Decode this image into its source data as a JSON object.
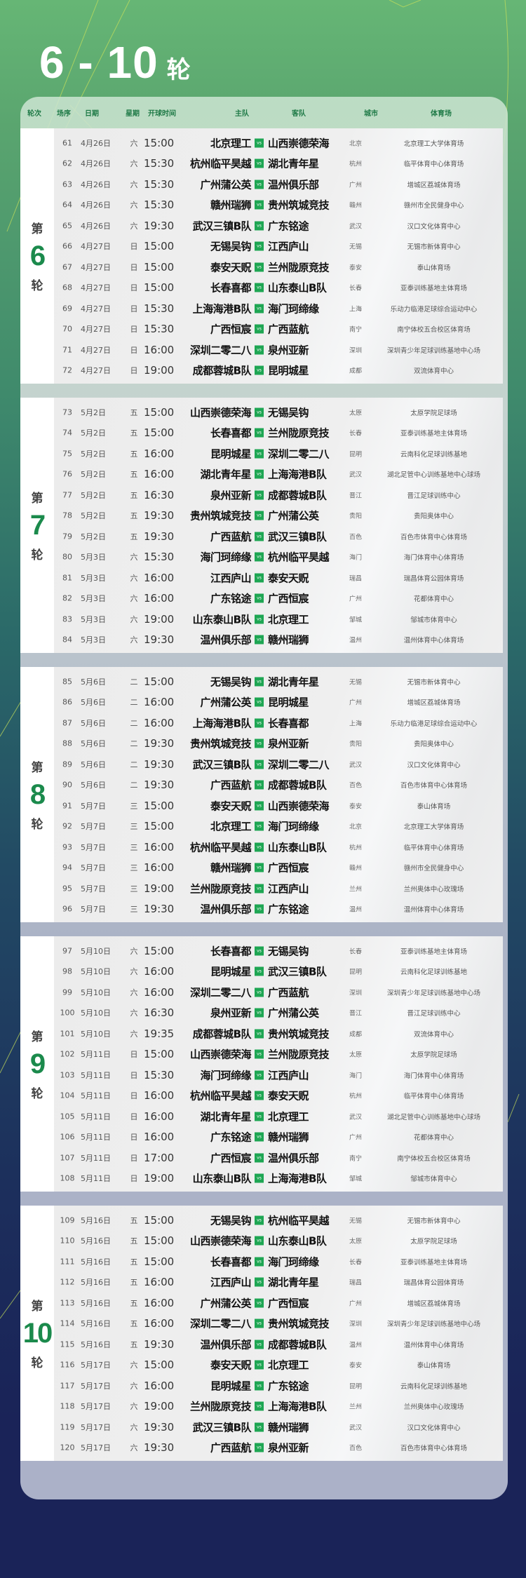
{
  "title": {
    "range": "6 - 10",
    "suffix": "轮"
  },
  "headers": [
    "轮次",
    "场序",
    "日期",
    "星期",
    "开球时间",
    "主队",
    "客队",
    "城市",
    "体育场"
  ],
  "vs_label": "vs",
  "colors": {
    "accent_green": "#1b8a4c",
    "vs_badge": "#1ea653",
    "bg_top": "#66b675",
    "bg_bottom": "#1a2358"
  },
  "rounds": [
    {
      "prefix": "第",
      "number": "6",
      "suffix": "轮",
      "matches": [
        [
          "61",
          "4月26日",
          "六",
          "15:00",
          "北京理工",
          "山西崇德荣海",
          "北京",
          "北京理工大学体育场"
        ],
        [
          "62",
          "4月26日",
          "六",
          "15:30",
          "杭州临平昊越",
          "湖北青年星",
          "杭州",
          "临平体育中心体育场"
        ],
        [
          "63",
          "4月26日",
          "六",
          "15:30",
          "广州蒲公英",
          "温州俱乐部",
          "广州",
          "增城区荔城体育场"
        ],
        [
          "64",
          "4月26日",
          "六",
          "15:30",
          "赣州瑞狮",
          "贵州筑城竞技",
          "赣州",
          "赣州市全民健身中心"
        ],
        [
          "65",
          "4月26日",
          "六",
          "19:30",
          "武汉三镇B队",
          "广东铭途",
          "武汉",
          "汉口文化体育中心"
        ],
        [
          "66",
          "4月27日",
          "日",
          "15:00",
          "无锡吴钩",
          "江西庐山",
          "无锡",
          "无锡市新体育中心"
        ],
        [
          "67",
          "4月27日",
          "日",
          "15:00",
          "泰安天贶",
          "兰州陇原竞技",
          "泰安",
          "泰山体育场"
        ],
        [
          "68",
          "4月27日",
          "日",
          "15:00",
          "长春喜都",
          "山东泰山B队",
          "长春",
          "亚泰训练基地主体育场"
        ],
        [
          "69",
          "4月27日",
          "日",
          "15:30",
          "上海海港B队",
          "海门珂缔缘",
          "上海",
          "乐动力临港足球综合运动中心"
        ],
        [
          "70",
          "4月27日",
          "日",
          "15:30",
          "广西恒宸",
          "广西蓝航",
          "南宁",
          "南宁体校五合校区体育场"
        ],
        [
          "71",
          "4月27日",
          "日",
          "16:00",
          "深圳二零二八",
          "泉州亚新",
          "深圳",
          "深圳青少年足球训练基地中心场"
        ],
        [
          "72",
          "4月27日",
          "日",
          "19:00",
          "成都蓉城B队",
          "昆明城星",
          "成都",
          "双流体育中心"
        ]
      ]
    },
    {
      "prefix": "第",
      "number": "7",
      "suffix": "轮",
      "matches": [
        [
          "73",
          "5月2日",
          "五",
          "15:00",
          "山西崇德荣海",
          "无锡吴钩",
          "太原",
          "太原学院足球场"
        ],
        [
          "74",
          "5月2日",
          "五",
          "15:00",
          "长春喜都",
          "兰州陇原竞技",
          "长春",
          "亚泰训练基地主体育场"
        ],
        [
          "75",
          "5月2日",
          "五",
          "16:00",
          "昆明城星",
          "深圳二零二八",
          "昆明",
          "云南科化足球训练基地"
        ],
        [
          "76",
          "5月2日",
          "五",
          "16:00",
          "湖北青年星",
          "上海海港B队",
          "武汉",
          "湖北足管中心训练基地中心球场"
        ],
        [
          "77",
          "5月2日",
          "五",
          "16:30",
          "泉州亚新",
          "成都蓉城B队",
          "晋江",
          "晋江足球训练中心"
        ],
        [
          "78",
          "5月2日",
          "五",
          "19:30",
          "贵州筑城竞技",
          "广州蒲公英",
          "贵阳",
          "贵阳奥体中心"
        ],
        [
          "79",
          "5月2日",
          "五",
          "19:30",
          "广西蓝航",
          "武汉三镇B队",
          "百色",
          "百色市体育中心体育场"
        ],
        [
          "80",
          "5月3日",
          "六",
          "15:30",
          "海门珂缔缘",
          "杭州临平昊越",
          "海门",
          "海门体育中心体育场"
        ],
        [
          "81",
          "5月3日",
          "六",
          "16:00",
          "江西庐山",
          "泰安天贶",
          "瑞昌",
          "瑞昌体育公园体育场"
        ],
        [
          "82",
          "5月3日",
          "六",
          "16:00",
          "广东铭途",
          "广西恒宸",
          "广州",
          "花都体育中心"
        ],
        [
          "83",
          "5月3日",
          "六",
          "19:00",
          "山东泰山B队",
          "北京理工",
          "邹城",
          "邹城市体育中心"
        ],
        [
          "84",
          "5月3日",
          "六",
          "19:30",
          "温州俱乐部",
          "赣州瑞狮",
          "温州",
          "温州体育中心体育场"
        ]
      ]
    },
    {
      "prefix": "第",
      "number": "8",
      "suffix": "轮",
      "matches": [
        [
          "85",
          "5月6日",
          "二",
          "15:00",
          "无锡吴钩",
          "湖北青年星",
          "无锡",
          "无锡市新体育中心"
        ],
        [
          "86",
          "5月6日",
          "二",
          "16:00",
          "广州蒲公英",
          "昆明城星",
          "广州",
          "增城区荔城体育场"
        ],
        [
          "87",
          "5月6日",
          "二",
          "16:00",
          "上海海港B队",
          "长春喜都",
          "上海",
          "乐动力临港足球综合运动中心"
        ],
        [
          "88",
          "5月6日",
          "二",
          "19:30",
          "贵州筑城竞技",
          "泉州亚新",
          "贵阳",
          "贵阳奥体中心"
        ],
        [
          "89",
          "5月6日",
          "二",
          "19:30",
          "武汉三镇B队",
          "深圳二零二八",
          "武汉",
          "汉口文化体育中心"
        ],
        [
          "90",
          "5月6日",
          "二",
          "19:30",
          "广西蓝航",
          "成都蓉城B队",
          "百色",
          "百色市体育中心体育场"
        ],
        [
          "91",
          "5月7日",
          "三",
          "15:00",
          "泰安天贶",
          "山西崇德荣海",
          "泰安",
          "泰山体育场"
        ],
        [
          "92",
          "5月7日",
          "三",
          "15:00",
          "北京理工",
          "海门珂缔缘",
          "北京",
          "北京理工大学体育场"
        ],
        [
          "93",
          "5月7日",
          "三",
          "16:00",
          "杭州临平昊越",
          "山东泰山B队",
          "杭州",
          "临平体育中心体育场"
        ],
        [
          "94",
          "5月7日",
          "三",
          "16:00",
          "赣州瑞狮",
          "广西恒宸",
          "赣州",
          "赣州市全民健身中心"
        ],
        [
          "95",
          "5月7日",
          "三",
          "19:00",
          "兰州陇原竞技",
          "江西庐山",
          "兰州",
          "兰州奥体中心玫瑰场"
        ],
        [
          "96",
          "5月7日",
          "三",
          "19:30",
          "温州俱乐部",
          "广东铭途",
          "温州",
          "温州体育中心体育场"
        ]
      ]
    },
    {
      "prefix": "第",
      "number": "9",
      "suffix": "轮",
      "matches": [
        [
          "97",
          "5月10日",
          "六",
          "15:00",
          "长春喜都",
          "无锡吴钩",
          "长春",
          "亚泰训练基地主体育场"
        ],
        [
          "98",
          "5月10日",
          "六",
          "16:00",
          "昆明城星",
          "武汉三镇B队",
          "昆明",
          "云南科化足球训练基地"
        ],
        [
          "99",
          "5月10日",
          "六",
          "16:00",
          "深圳二零二八",
          "广西蓝航",
          "深圳",
          "深圳青少年足球训练基地中心场"
        ],
        [
          "100",
          "5月10日",
          "六",
          "16:30",
          "泉州亚新",
          "广州蒲公英",
          "晋江",
          "晋江足球训练中心"
        ],
        [
          "101",
          "5月10日",
          "六",
          "19:35",
          "成都蓉城B队",
          "贵州筑城竞技",
          "成都",
          "双流体育中心"
        ],
        [
          "102",
          "5月11日",
          "日",
          "15:00",
          "山西崇德荣海",
          "兰州陇原竞技",
          "太原",
          "太原学院足球场"
        ],
        [
          "103",
          "5月11日",
          "日",
          "15:30",
          "海门珂缔缘",
          "江西庐山",
          "海门",
          "海门体育中心体育场"
        ],
        [
          "104",
          "5月11日",
          "日",
          "16:00",
          "杭州临平昊越",
          "泰安天贶",
          "杭州",
          "临平体育中心体育场"
        ],
        [
          "105",
          "5月11日",
          "日",
          "16:00",
          "湖北青年星",
          "北京理工",
          "武汉",
          "湖北足管中心训练基地中心球场"
        ],
        [
          "106",
          "5月11日",
          "日",
          "16:00",
          "广东铭途",
          "赣州瑞狮",
          "广州",
          "花都体育中心"
        ],
        [
          "107",
          "5月11日",
          "日",
          "17:00",
          "广西恒宸",
          "温州俱乐部",
          "南宁",
          "南宁体校五合校区体育场"
        ],
        [
          "108",
          "5月11日",
          "日",
          "19:00",
          "山东泰山B队",
          "上海海港B队",
          "邹城",
          "邹城市体育中心"
        ]
      ]
    },
    {
      "prefix": "第",
      "number": "10",
      "suffix": "轮",
      "matches": [
        [
          "109",
          "5月16日",
          "五",
          "15:00",
          "无锡吴钩",
          "杭州临平昊越",
          "无锡",
          "无锡市新体育中心"
        ],
        [
          "110",
          "5月16日",
          "五",
          "15:00",
          "山西崇德荣海",
          "山东泰山B队",
          "太原",
          "太原学院足球场"
        ],
        [
          "111",
          "5月16日",
          "五",
          "15:00",
          "长春喜都",
          "海门珂缔缘",
          "长春",
          "亚泰训练基地主体育场"
        ],
        [
          "112",
          "5月16日",
          "五",
          "16:00",
          "江西庐山",
          "湖北青年星",
          "瑞昌",
          "瑞昌体育公园体育场"
        ],
        [
          "113",
          "5月16日",
          "五",
          "16:00",
          "广州蒲公英",
          "广西恒宸",
          "广州",
          "增城区荔城体育场"
        ],
        [
          "114",
          "5月16日",
          "五",
          "16:00",
          "深圳二零二八",
          "贵州筑城竞技",
          "深圳",
          "深圳青少年足球训练基地中心场"
        ],
        [
          "115",
          "5月16日",
          "五",
          "19:30",
          "温州俱乐部",
          "成都蓉城B队",
          "温州",
          "温州体育中心体育场"
        ],
        [
          "116",
          "5月17日",
          "六",
          "15:00",
          "泰安天贶",
          "北京理工",
          "泰安",
          "泰山体育场"
        ],
        [
          "117",
          "5月17日",
          "六",
          "16:00",
          "昆明城星",
          "广东铭途",
          "昆明",
          "云南科化足球训练基地"
        ],
        [
          "118",
          "5月17日",
          "六",
          "19:00",
          "兰州陇原竞技",
          "上海海港B队",
          "兰州",
          "兰州奥体中心玫瑰场"
        ],
        [
          "119",
          "5月17日",
          "六",
          "19:30",
          "武汉三镇B队",
          "赣州瑞狮",
          "武汉",
          "汉口文化体育中心"
        ],
        [
          "120",
          "5月17日",
          "六",
          "19:30",
          "广西蓝航",
          "泉州亚新",
          "百色",
          "百色市体育中心体育场"
        ]
      ]
    }
  ]
}
